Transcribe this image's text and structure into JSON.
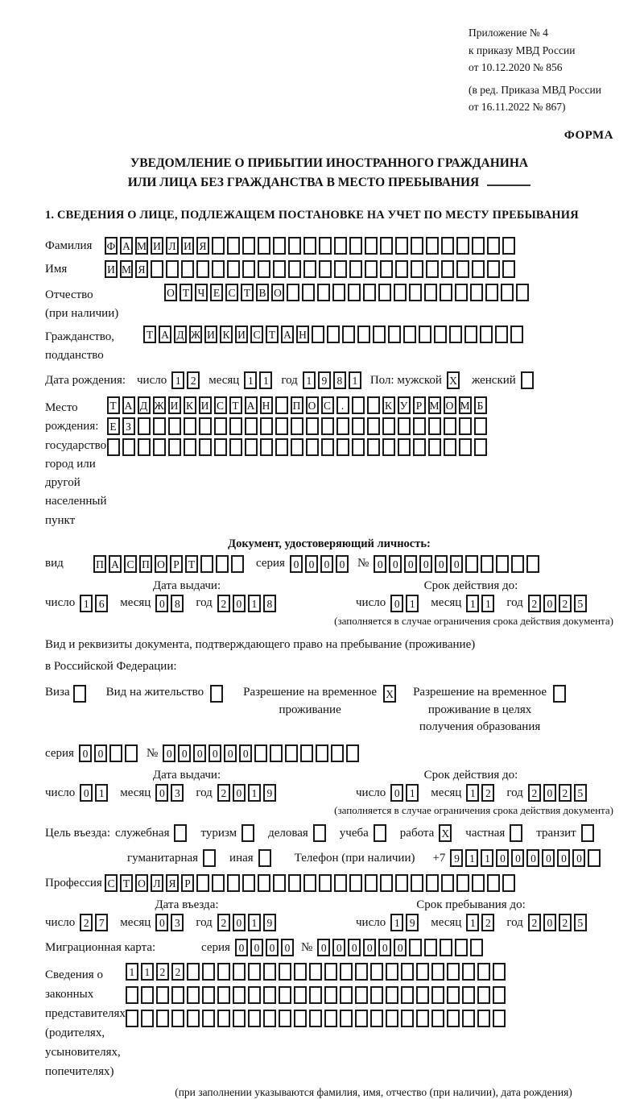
{
  "colors": {
    "paper": "#ffffff",
    "ink": "#1a1a1a"
  },
  "header": {
    "appendix_lines": [
      "Приложение № 4",
      "к приказу МВД России",
      "от 10.12.2020 № 856"
    ],
    "edition_lines": [
      "(в ред. Приказа МВД России",
      "от 16.11.2022 № 867)"
    ],
    "form_label": "ФОРМА"
  },
  "title": {
    "line1": "УВЕДОМЛЕНИЕ О ПРИБЫТИИ ИНОСТРАННОГО ГРАЖДАНИНА",
    "line2": "ИЛИ ЛИЦА БЕЗ ГРАЖДАНСТВА В МЕСТО ПРЕБЫВАНИЯ"
  },
  "section1_heading": "1. СВЕДЕНИЯ О ЛИЦЕ, ПОДЛЕЖАЩЕМ ПОСТАНОВКЕ НА УЧЕТ ПО МЕСТУ ПРЕБЫВАНИЯ",
  "date_labels": {
    "day": "число",
    "month": "месяц",
    "year": "год"
  },
  "surname": {
    "label": "Фамилия",
    "cells": {
      "value": "ФАМИЛИЯ",
      "count": 27
    }
  },
  "firstname": {
    "label": "Имя",
    "cells": {
      "value": "ИМЯ",
      "count": 27
    }
  },
  "patronymic": {
    "label1": "Отчество",
    "label2": "(при наличии)",
    "cells": {
      "value": "ОТЧЕСТВО",
      "count": 24
    }
  },
  "citizenship": {
    "label1": "Гражданство,",
    "label2": "подданство",
    "cells": {
      "value": "ТАДЖИКИСТАН",
      "count": 25
    }
  },
  "birth": {
    "label": "Дата рождения:",
    "day": {
      "value": "12",
      "count": 2
    },
    "month": {
      "value": "11",
      "count": 2
    },
    "year": {
      "value": "1981",
      "count": 4
    }
  },
  "gender": {
    "label": "Пол: мужской",
    "male_box": {
      "value": "X",
      "count": 1
    },
    "female_label": "женский",
    "female_box": {
      "value": "",
      "count": 1
    }
  },
  "birth_place": {
    "label1": "Место рождения:",
    "label2": "государство",
    "label3": "город или другой",
    "label4": "населенный пункт",
    "row1": {
      "value": "ТАДЖИКИСТАН ПОС.  КУРМОМБ",
      "count": 25
    },
    "row2": {
      "value": "ЕЗ",
      "count": 25
    },
    "row3": {
      "value": "",
      "count": 25
    }
  },
  "identity_doc": {
    "heading": "Документ, удостоверяющий личность:",
    "kind_label": "вид",
    "kind": {
      "value": "ПАСПОРТ",
      "count": 10
    },
    "series_label": "серия",
    "series": {
      "value": "0000",
      "count": 4
    },
    "number_label": "№",
    "number": {
      "value": "000000",
      "count": 11
    },
    "issue": {
      "heading": "Дата выдачи:",
      "day": {
        "value": "16",
        "count": 2
      },
      "month": {
        "value": "08",
        "count": 2
      },
      "year": {
        "value": "2018",
        "count": 4
      }
    },
    "expiry": {
      "heading": "Срок действия до:",
      "day": {
        "value": "01",
        "count": 2
      },
      "month": {
        "value": "11",
        "count": 2
      },
      "year": {
        "value": "2025",
        "count": 4
      }
    },
    "note": "(заполняется в случае ограничения срока действия документа)"
  },
  "residence_doc": {
    "intro1": "Вид и реквизиты документа, подтверждающего право на пребывание (проживание)",
    "intro2": "в Российской Федерации:",
    "options": [
      {
        "line1": "Виза",
        "box": {
          "value": "",
          "count": 1
        }
      },
      {
        "line1": "Вид на жительство",
        "box": {
          "value": "",
          "count": 1
        }
      },
      {
        "line1": "Разрешение на временное",
        "line2": "проживание",
        "box": {
          "value": "X",
          "count": 1
        }
      },
      {
        "line1": "Разрешение на временное",
        "line2": "проживание в целях",
        "line3": "получения образования",
        "box": {
          "value": "",
          "count": 1
        }
      }
    ],
    "series_label": "серия",
    "series": {
      "value": "00",
      "count": 4
    },
    "number_label": "№",
    "number": {
      "value": "000000",
      "count": 13
    },
    "issue": {
      "heading": "Дата выдачи:",
      "day": {
        "value": "01",
        "count": 2
      },
      "month": {
        "value": "03",
        "count": 2
      },
      "year": {
        "value": "2019",
        "count": 4
      }
    },
    "expiry": {
      "heading": "Срок действия до:",
      "day": {
        "value": "01",
        "count": 2
      },
      "month": {
        "value": "12",
        "count": 2
      },
      "year": {
        "value": "2025",
        "count": 4
      }
    },
    "note": "(заполняется в случае ограничения срока действия документа)"
  },
  "purpose": {
    "label": "Цель въезда:",
    "options": [
      {
        "label": "служебная",
        "box": {
          "value": "",
          "count": 1
        }
      },
      {
        "label": "туризм",
        "box": {
          "value": "",
          "count": 1
        }
      },
      {
        "label": "деловая",
        "box": {
          "value": "",
          "count": 1
        }
      },
      {
        "label": "учеба",
        "box": {
          "value": "",
          "count": 1
        }
      },
      {
        "label": "работа",
        "box": {
          "value": "X",
          "count": 1
        }
      },
      {
        "label": "частная",
        "box": {
          "value": "",
          "count": 1
        }
      },
      {
        "label": "транзит",
        "box": {
          "value": "",
          "count": 1
        }
      },
      {
        "label": "гуманитарная",
        "box": {
          "value": "",
          "count": 1
        }
      },
      {
        "label": "иная",
        "box": {
          "value": "",
          "count": 1
        }
      }
    ],
    "phone_label": "Телефон (при наличии)",
    "phone_prefix": "+7",
    "phone": {
      "value": "911000000",
      "count": 10
    }
  },
  "profession": {
    "label": "Профессия",
    "cells": {
      "value": "СТОЛЯР",
      "count": 27
    }
  },
  "entry": {
    "heading": "Дата въезда:",
    "day": {
      "value": "27",
      "count": 2
    },
    "month": {
      "value": "03",
      "count": 2
    },
    "year": {
      "value": "2019",
      "count": 4
    }
  },
  "stay": {
    "heading": "Срок пребывания до:",
    "day": {
      "value": "19",
      "count": 2
    },
    "month": {
      "value": "12",
      "count": 2
    },
    "year": {
      "value": "2025",
      "count": 4
    }
  },
  "migration_card": {
    "label": "Миграционная карта:",
    "series_label": "серия",
    "series": {
      "value": "0000",
      "count": 4
    },
    "number_label": "№",
    "number": {
      "value": "000000",
      "count": 11
    }
  },
  "representatives": {
    "label1": "Сведения о",
    "label2": "законных",
    "label3": "представителях",
    "label4": "(родителях,",
    "label5": "усыновителях,",
    "label6": "попечителях)",
    "row1": {
      "value": "1122",
      "count": 25
    },
    "row2": {
      "value": "",
      "count": 25
    },
    "row3": {
      "value": "",
      "count": 25
    },
    "note": "(при заполнении указываются фамилия, имя, отчество (при наличии), дата рождения)"
  }
}
